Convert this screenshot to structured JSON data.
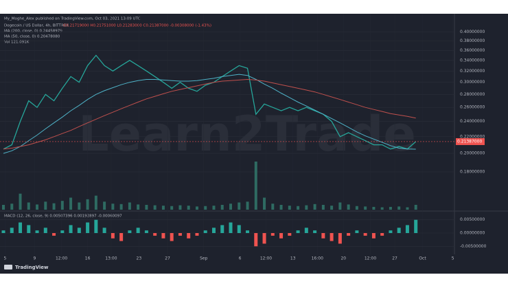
{
  "chart_data": {
    "type": "line",
    "publisher": "My_Moghe_Alex published on TradingView.com, Oct 03, 2021 13:09 UTC",
    "title": "Dogecoin / US Dollar, 4h, BITTREX",
    "ohlc": "O0.21719000 H0.21751000 L0.21283000 C0.21387000 -0.00308000 (-1.43%)",
    "indicators": [
      "MA (200, close, 0) 0.24458979",
      "MA (50, close, 0) 0.20478080",
      "Vol 121.091K"
    ],
    "watermark": "Learn2Trade",
    "brand": "TradingView",
    "log_scale": true,
    "ylim": [
      0.145,
      0.43
    ],
    "yticks": [
      {
        "value": 0.18,
        "label": "0.18000000"
      },
      {
        "value": 0.2,
        "label": "0.20000000"
      },
      {
        "value": 0.22,
        "label": "0.22000000"
      },
      {
        "value": 0.24,
        "label": "0.24000000"
      },
      {
        "value": 0.26,
        "label": "0.26000000"
      },
      {
        "value": 0.28,
        "label": "0.28000000"
      },
      {
        "value": 0.3,
        "label": "0.30000000"
      },
      {
        "value": 0.32,
        "label": "0.32000000"
      },
      {
        "value": 0.34,
        "label": "0.34000000"
      },
      {
        "value": 0.36,
        "label": "0.36000000"
      },
      {
        "value": 0.38,
        "label": "0.38000000"
      },
      {
        "value": 0.4,
        "label": "0.40000000"
      }
    ],
    "xlim": [
      0,
      54
    ],
    "xticks": [
      {
        "value": 0.2,
        "label": "5"
      },
      {
        "value": 3.7,
        "label": "9"
      },
      {
        "value": 6.9,
        "label": "12:00"
      },
      {
        "value": 10,
        "label": "16"
      },
      {
        "value": 12.8,
        "label": "13:00"
      },
      {
        "value": 16.1,
        "label": "23"
      },
      {
        "value": 19.5,
        "label": "27"
      },
      {
        "value": 23.8,
        "label": "Sep"
      },
      {
        "value": 28.1,
        "label": "6"
      },
      {
        "value": 31.2,
        "label": "12:00"
      },
      {
        "value": 34.4,
        "label": "13"
      },
      {
        "value": 37.3,
        "label": "16:00"
      },
      {
        "value": 40.4,
        "label": "20"
      },
      {
        "value": 43.6,
        "label": "12:00"
      },
      {
        "value": 46.5,
        "label": "27"
      },
      {
        "value": 49.8,
        "label": "Oct"
      },
      {
        "value": 53.4,
        "label": "5"
      }
    ],
    "last_price": {
      "value": 0.21387,
      "label": "0.21387000"
    },
    "series": [
      {
        "name": "DOGEUSD",
        "color": "#26a69a",
        "values": [
          0.205,
          0.21,
          0.24,
          0.27,
          0.26,
          0.28,
          0.27,
          0.29,
          0.31,
          0.3,
          0.33,
          0.35,
          0.33,
          0.32,
          0.33,
          0.34,
          0.33,
          0.32,
          0.31,
          0.3,
          0.29,
          0.3,
          0.29,
          0.285,
          0.295,
          0.3,
          0.31,
          0.32,
          0.33,
          0.325,
          0.25,
          0.265,
          0.26,
          0.255,
          0.26,
          0.255,
          0.26,
          0.255,
          0.25,
          0.24,
          0.22,
          0.225,
          0.22,
          0.215,
          0.21,
          0.21,
          0.205,
          0.208,
          0.205,
          0.21387
        ]
      },
      {
        "name": "MA (50, close, 0)",
        "color": "#4fb3c8",
        "values": [
          0.2,
          0.203,
          0.208,
          0.215,
          0.222,
          0.23,
          0.238,
          0.246,
          0.255,
          0.263,
          0.272,
          0.28,
          0.286,
          0.291,
          0.296,
          0.3,
          0.303,
          0.305,
          0.305,
          0.304,
          0.303,
          0.302,
          0.302,
          0.303,
          0.305,
          0.307,
          0.31,
          0.312,
          0.314,
          0.312,
          0.305,
          0.297,
          0.29,
          0.282,
          0.275,
          0.268,
          0.262,
          0.256,
          0.25,
          0.244,
          0.238,
          0.232,
          0.226,
          0.221,
          0.217,
          0.213,
          0.209,
          0.206,
          0.205,
          0.2048
        ]
      },
      {
        "name": "MA (200, close, 0)",
        "color": "#c0504d",
        "values": [
          0.205,
          0.206,
          0.208,
          0.21,
          0.213,
          0.216,
          0.22,
          0.224,
          0.228,
          0.233,
          0.238,
          0.243,
          0.248,
          0.253,
          0.258,
          0.263,
          0.268,
          0.273,
          0.277,
          0.281,
          0.285,
          0.288,
          0.291,
          0.294,
          0.297,
          0.3,
          0.302,
          0.303,
          0.304,
          0.305,
          0.304,
          0.302,
          0.299,
          0.296,
          0.293,
          0.29,
          0.287,
          0.284,
          0.28,
          0.276,
          0.272,
          0.268,
          0.264,
          0.26,
          0.257,
          0.254,
          0.251,
          0.249,
          0.247,
          0.2446
        ]
      }
    ],
    "volume": {
      "color": "#2e6b62",
      "values": [
        120,
        150,
        400,
        180,
        130,
        200,
        160,
        220,
        300,
        180,
        260,
        350,
        200,
        150,
        140,
        180,
        130,
        120,
        110,
        100,
        90,
        110,
        100,
        80,
        90,
        100,
        120,
        150,
        180,
        200,
        1200,
        300,
        150,
        120,
        100,
        90,
        110,
        140,
        120,
        100,
        180,
        130,
        90,
        80,
        70,
        60,
        70,
        80,
        60,
        121
      ]
    },
    "macd": {
      "title": "MACD (12, 26, close, 9) 0.00507396 0.00192897 -0.00060097",
      "ylim": [
        -0.007,
        0.007
      ],
      "yticks": [
        {
          "value": 0.005,
          "label": "0.00500000"
        },
        {
          "value": 0,
          "label": "0.00000000"
        },
        {
          "value": -0.005,
          "label": "-0.00500000"
        }
      ],
      "pos_color": "#26a69a",
      "neg_color": "#ef5350",
      "values": [
        0.001,
        0.002,
        0.004,
        0.003,
        0.001,
        0.002,
        -0.001,
        0.001,
        0.003,
        0.002,
        0.004,
        0.005,
        0.002,
        -0.002,
        -0.003,
        0.001,
        0.002,
        0.001,
        -0.001,
        -0.002,
        -0.003,
        -0.001,
        -0.002,
        -0.001,
        0.001,
        0.002,
        0.003,
        0.004,
        0.003,
        0.001,
        -0.005,
        -0.004,
        -0.001,
        -0.002,
        -0.001,
        0.001,
        0.002,
        0.001,
        -0.002,
        -0.003,
        -0.004,
        -0.001,
        0.001,
        -0.001,
        -0.002,
        -0.001,
        0.001,
        0.002,
        0.003,
        0.005
      ]
    }
  }
}
